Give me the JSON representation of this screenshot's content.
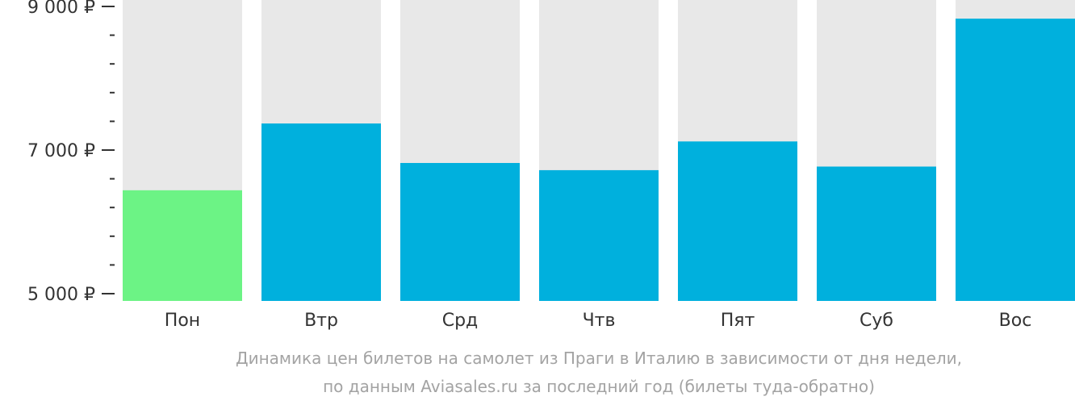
{
  "caption": {
    "line1": "Динамика цен билетов на самолет из Праги в Италию в зависимости от дня недели,",
    "line2": "по данным Aviasales.ru за последний год (билеты туда-обратно)"
  },
  "colors": {
    "track": "#e8e8e8",
    "bar": "#00b0dd",
    "highlight": "#6cf385",
    "axis": "#333333"
  },
  "chart_data": {
    "type": "bar",
    "categories": [
      "Пон",
      "Втр",
      "Срд",
      "Чтв",
      "Пят",
      "Суб",
      "Вос"
    ],
    "values": [
      6440,
      7370,
      6820,
      6720,
      7120,
      6770,
      8830
    ],
    "highlight_index": 0,
    "ylim": [
      5000,
      9000
    ],
    "yticks": [
      {
        "value": 9000,
        "label": "9 000 ₽"
      },
      {
        "value": 7000,
        "label": "7 000 ₽"
      },
      {
        "value": 5000,
        "label": "5 000 ₽"
      }
    ],
    "minor_step": 400,
    "grid": false,
    "title": "",
    "xlabel": "",
    "ylabel": ""
  }
}
